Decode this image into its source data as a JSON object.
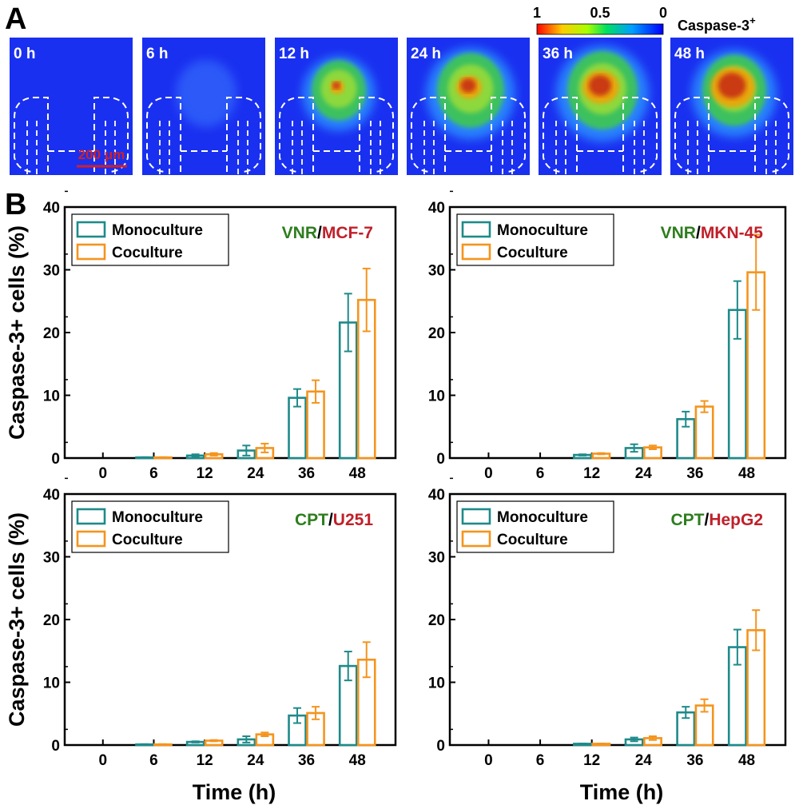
{
  "panel_a": {
    "letter": "A",
    "colorbar": {
      "ticks": [
        "1",
        "0.5",
        "0"
      ],
      "label": "Caspase-3",
      "superscript": "+"
    },
    "frames": [
      "0 h",
      "6 h",
      "12 h",
      "24 h",
      "36 h",
      "48 h"
    ],
    "scale_bar": "200 μm"
  },
  "panel_b": {
    "letter": "B"
  },
  "colors": {
    "monoculture": "#1f8a8a",
    "coculture": "#f5941d",
    "drug": "#2e7d1e",
    "cell": "#c0202a"
  },
  "chart_data": [
    {
      "type": "bar",
      "drug": "VNR",
      "cell_line": "MCF-7",
      "categories": [
        "0",
        "6",
        "12",
        "24",
        "36",
        "48"
      ],
      "series": [
        {
          "name": "Monoculture",
          "values": [
            0,
            0.1,
            0.4,
            1.2,
            9.6,
            21.6
          ],
          "errors": [
            0,
            0.05,
            0.2,
            0.8,
            1.4,
            4.6
          ]
        },
        {
          "name": "Coculture",
          "values": [
            0,
            0.1,
            0.6,
            1.6,
            10.6,
            25.2
          ],
          "errors": [
            0,
            0.05,
            0.2,
            0.7,
            1.8,
            5.0
          ]
        }
      ],
      "xlabel": "",
      "ylabel": "Caspase-3+ cells (%)",
      "ylim": [
        0,
        40
      ],
      "yticks": [
        0,
        10,
        20,
        30,
        40
      ],
      "legend": "top-left"
    },
    {
      "type": "bar",
      "drug": "VNR",
      "cell_line": "MKN-45",
      "categories": [
        "0",
        "6",
        "12",
        "24",
        "36",
        "48"
      ],
      "series": [
        {
          "name": "Monoculture",
          "values": [
            0,
            0,
            0.5,
            1.6,
            6.2,
            23.6
          ],
          "errors": [
            0,
            0,
            0.1,
            0.6,
            1.2,
            4.6
          ]
        },
        {
          "name": "Coculture",
          "values": [
            0,
            0,
            0.7,
            1.7,
            8.2,
            29.6
          ],
          "errors": [
            0,
            0,
            0.1,
            0.3,
            0.9,
            6.0
          ]
        }
      ],
      "xlabel": "",
      "ylabel": "",
      "ylim": [
        0,
        40
      ],
      "yticks": [
        0,
        10,
        20,
        30,
        40
      ],
      "legend": "top-left"
    },
    {
      "type": "bar",
      "drug": "CPT",
      "cell_line": "U251",
      "categories": [
        "0",
        "6",
        "12",
        "24",
        "36",
        "48"
      ],
      "series": [
        {
          "name": "Monoculture",
          "values": [
            0,
            0.1,
            0.5,
            0.9,
            4.7,
            12.6
          ],
          "errors": [
            0,
            0.05,
            0.1,
            0.5,
            1.2,
            2.3
          ]
        },
        {
          "name": "Coculture",
          "values": [
            0,
            0.1,
            0.7,
            1.7,
            5.1,
            13.6
          ],
          "errors": [
            0,
            0.05,
            0.1,
            0.3,
            1.0,
            2.8
          ]
        }
      ],
      "xlabel": "Time (h)",
      "ylabel": "Caspase-3+ cells (%)",
      "ylim": [
        0,
        40
      ],
      "yticks": [
        0,
        10,
        20,
        30,
        40
      ],
      "legend": "top-left"
    },
    {
      "type": "bar",
      "drug": "CPT",
      "cell_line": "HepG2",
      "categories": [
        "0",
        "6",
        "12",
        "24",
        "36",
        "48"
      ],
      "series": [
        {
          "name": "Monoculture",
          "values": [
            0,
            0,
            0.2,
            0.9,
            5.2,
            15.6
          ],
          "errors": [
            0,
            0,
            0.05,
            0.3,
            0.9,
            2.8
          ]
        },
        {
          "name": "Coculture",
          "values": [
            0,
            0,
            0.2,
            1.1,
            6.3,
            18.3
          ],
          "errors": [
            0,
            0,
            0.05,
            0.3,
            1.0,
            3.2
          ]
        }
      ],
      "xlabel": "Time (h)",
      "ylabel": "",
      "ylim": [
        0,
        40
      ],
      "yticks": [
        0,
        10,
        20,
        30,
        40
      ],
      "legend": "top-left"
    }
  ]
}
